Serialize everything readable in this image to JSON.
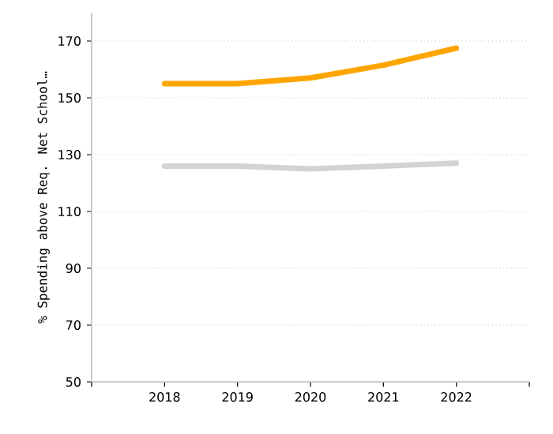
{
  "chart_data": {
    "type": "line",
    "ylabel": "% Spending above Req. Net School…",
    "x": [
      2018,
      2019,
      2020,
      2021,
      2022
    ],
    "series": [
      {
        "color": "#ffa500",
        "values": [
          155,
          155,
          157,
          161.5,
          167.5
        ]
      },
      {
        "color": "#d3d3d3",
        "values": [
          126,
          126,
          125,
          126,
          127
        ]
      }
    ],
    "xlim": [
      2017,
      2023
    ],
    "xticks": [
      {
        "value": 2017,
        "label": null
      },
      2018,
      2019,
      2020,
      2021,
      2022,
      {
        "value": 2023,
        "label": null
      }
    ],
    "ylim": [
      50,
      180
    ],
    "yticks": [
      50,
      70,
      90,
      110,
      130,
      150,
      170
    ],
    "grid": "y",
    "marker": "none",
    "line_style": "solid"
  }
}
